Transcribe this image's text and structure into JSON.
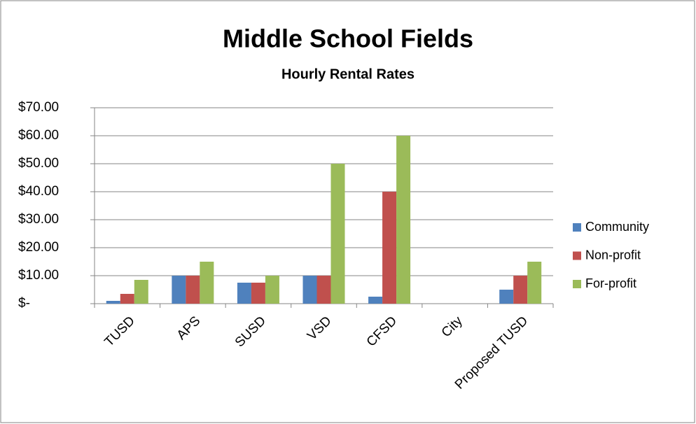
{
  "chart_data": {
    "type": "bar",
    "title": "Middle School Fields",
    "subtitle": "Hourly Rental Rates",
    "categories": [
      "TUSD",
      "APS",
      "SUSD",
      "VSD",
      "CFSD",
      "City",
      "Proposed TUSD"
    ],
    "series": [
      {
        "name": "Community",
        "color": "#4f81bd",
        "values": [
          1,
          10,
          7.5,
          10,
          2.5,
          0,
          5
        ]
      },
      {
        "name": "Non-profit",
        "color": "#c0504d",
        "values": [
          3.5,
          10,
          7.5,
          10,
          40,
          0,
          10
        ]
      },
      {
        "name": "For-profit",
        "color": "#9bbb59",
        "values": [
          8.5,
          15,
          10,
          50,
          60,
          0,
          15
        ]
      }
    ],
    "ylim": [
      0,
      70
    ],
    "yticks": [
      {
        "value": 0,
        "label": "$-"
      },
      {
        "value": 10,
        "label": "$10.00"
      },
      {
        "value": 20,
        "label": "$20.00"
      },
      {
        "value": 30,
        "label": "$30.00"
      },
      {
        "value": 40,
        "label": "$40.00"
      },
      {
        "value": 50,
        "label": "$50.00"
      },
      {
        "value": 60,
        "label": "$60.00"
      },
      {
        "value": 70,
        "label": "$70.00"
      }
    ],
    "grid": true,
    "legend": "right"
  }
}
